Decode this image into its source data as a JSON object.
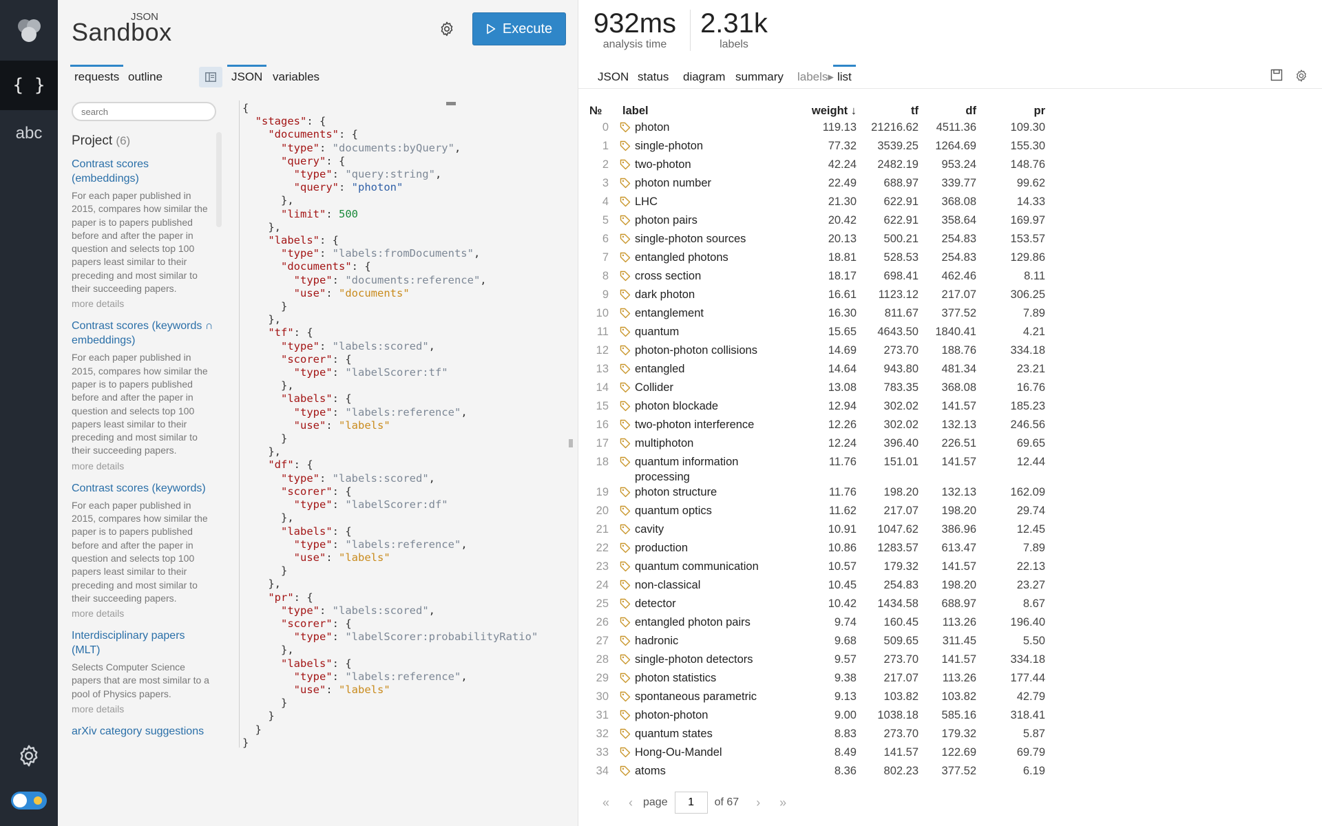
{
  "app": {
    "brand_small": "JSON",
    "brand_big": "Sandbox",
    "execute_label": "Execute"
  },
  "rail": {
    "json_label": "{ }",
    "abc_label": "abc"
  },
  "left_tabs": [
    "requests",
    "outline"
  ],
  "editor_tabs": [
    "JSON",
    "variables"
  ],
  "search": {
    "placeholder": "search"
  },
  "project": {
    "title": "Project",
    "count": "(6)"
  },
  "project_items": [
    {
      "title": "Contrast scores (embeddings)",
      "desc": "For each paper published in 2015, compares how similar the paper is to papers published before and after the paper in question and selects top 100 papers least similar to their preceding and most similar to their succeeding papers.",
      "more": "more details"
    },
    {
      "title": "Contrast scores (keywords ∩ embeddings)",
      "desc": "For each paper published in 2015, compares how similar the paper is to papers published before and after the paper in question and selects top 100 papers least similar to their preceding and most similar to their succeeding papers.",
      "more": "more details"
    },
    {
      "title": "Contrast scores (keywords)",
      "desc": "For each paper published in 2015, compares how similar the paper is to papers published before and after the paper in question and selects top 100 papers least similar to their preceding and most similar to their succeeding papers.",
      "more": "more details"
    },
    {
      "title": "Interdisciplinary papers (MLT)",
      "desc": "Selects Computer Science papers that are most similar to a pool of Physics papers.",
      "more": "more details"
    },
    {
      "title": "arXiv category suggestions",
      "desc": "",
      "more": ""
    }
  ],
  "stats": [
    {
      "value": "932ms",
      "label": "analysis time"
    },
    {
      "value": "2.31k",
      "label": "labels"
    }
  ],
  "result_tabs": [
    "JSON",
    "status",
    "diagram",
    "summary",
    "labels▸",
    "list"
  ],
  "columns": {
    "no": "№",
    "label": "label",
    "weight": "weight ↓",
    "tf": "tf",
    "df": "df",
    "pr": "pr"
  },
  "rows": [
    [
      "0",
      "photon",
      "119.13",
      "21216.62",
      "4511.36",
      "109.30"
    ],
    [
      "1",
      "single-photon",
      "77.32",
      "3539.25",
      "1264.69",
      "155.30"
    ],
    [
      "2",
      "two-photon",
      "42.24",
      "2482.19",
      "953.24",
      "148.76"
    ],
    [
      "3",
      "photon number",
      "22.49",
      "688.97",
      "339.77",
      "99.62"
    ],
    [
      "4",
      "LHC",
      "21.30",
      "622.91",
      "368.08",
      "14.33"
    ],
    [
      "5",
      "photon pairs",
      "20.42",
      "622.91",
      "358.64",
      "169.97"
    ],
    [
      "6",
      "single-photon sources",
      "20.13",
      "500.21",
      "254.83",
      "153.57"
    ],
    [
      "7",
      "entangled photons",
      "18.81",
      "528.53",
      "254.83",
      "129.86"
    ],
    [
      "8",
      "cross section",
      "18.17",
      "698.41",
      "462.46",
      "8.11"
    ],
    [
      "9",
      "dark photon",
      "16.61",
      "1123.12",
      "217.07",
      "306.25"
    ],
    [
      "10",
      "entanglement",
      "16.30",
      "811.67",
      "377.52",
      "7.89"
    ],
    [
      "11",
      "quantum",
      "15.65",
      "4643.50",
      "1840.41",
      "4.21"
    ],
    [
      "12",
      "photon-photon collisions",
      "14.69",
      "273.70",
      "188.76",
      "334.18"
    ],
    [
      "13",
      "entangled",
      "14.64",
      "943.80",
      "481.34",
      "23.21"
    ],
    [
      "14",
      "Collider",
      "13.08",
      "783.35",
      "368.08",
      "16.76"
    ],
    [
      "15",
      "photon blockade",
      "12.94",
      "302.02",
      "141.57",
      "185.23"
    ],
    [
      "16",
      "two-photon interference",
      "12.26",
      "302.02",
      "132.13",
      "246.56"
    ],
    [
      "17",
      "multiphoton",
      "12.24",
      "396.40",
      "226.51",
      "69.65"
    ],
    [
      "18",
      "quantum information processing",
      "11.76",
      "151.01",
      "141.57",
      "12.44"
    ],
    [
      "19",
      "photon structure",
      "11.76",
      "198.20",
      "132.13",
      "162.09"
    ],
    [
      "20",
      "quantum optics",
      "11.62",
      "217.07",
      "198.20",
      "29.74"
    ],
    [
      "21",
      "cavity",
      "10.91",
      "1047.62",
      "386.96",
      "12.45"
    ],
    [
      "22",
      "production",
      "10.86",
      "1283.57",
      "613.47",
      "7.89"
    ],
    [
      "23",
      "quantum communication",
      "10.57",
      "179.32",
      "141.57",
      "22.13"
    ],
    [
      "24",
      "non-classical",
      "10.45",
      "254.83",
      "198.20",
      "23.27"
    ],
    [
      "25",
      "detector",
      "10.42",
      "1434.58",
      "688.97",
      "8.67"
    ],
    [
      "26",
      "entangled photon pairs",
      "9.74",
      "160.45",
      "113.26",
      "196.40"
    ],
    [
      "27",
      "hadronic",
      "9.68",
      "509.65",
      "311.45",
      "5.50"
    ],
    [
      "28",
      "single-photon detectors",
      "9.57",
      "273.70",
      "141.57",
      "334.18"
    ],
    [
      "29",
      "photon statistics",
      "9.38",
      "217.07",
      "113.26",
      "177.44"
    ],
    [
      "30",
      "spontaneous parametric",
      "9.13",
      "103.82",
      "103.82",
      "42.79"
    ],
    [
      "31",
      "photon-photon",
      "9.00",
      "1038.18",
      "585.16",
      "318.41"
    ],
    [
      "32",
      "quantum states",
      "8.83",
      "273.70",
      "179.32",
      "5.87"
    ],
    [
      "33",
      "Hong-Ou-Mandel",
      "8.49",
      "141.57",
      "122.69",
      "69.79"
    ],
    [
      "34",
      "atoms",
      "8.36",
      "802.23",
      "377.52",
      "6.19"
    ]
  ],
  "pager": {
    "page_label": "page",
    "page_value": "1",
    "of_label": "of 67"
  },
  "code_lines": [
    [
      [
        "p",
        "{"
      ]
    ],
    [
      [
        "p",
        "  "
      ],
      [
        "k",
        "\"stages\""
      ],
      [
        "p",
        ": {"
      ]
    ],
    [
      [
        "p",
        "    "
      ],
      [
        "k",
        "\"documents\""
      ],
      [
        "p",
        ": {"
      ]
    ],
    [
      [
        "p",
        "      "
      ],
      [
        "k",
        "\"type\""
      ],
      [
        "p",
        ": "
      ],
      [
        "s",
        "\"documents:byQuery\""
      ],
      [
        "p",
        ","
      ]
    ],
    [
      [
        "p",
        "      "
      ],
      [
        "k",
        "\"query\""
      ],
      [
        "p",
        ": {"
      ]
    ],
    [
      [
        "p",
        "        "
      ],
      [
        "k",
        "\"type\""
      ],
      [
        "p",
        ": "
      ],
      [
        "s",
        "\"query:string\""
      ],
      [
        "p",
        ","
      ]
    ],
    [
      [
        "p",
        "        "
      ],
      [
        "k",
        "\"query\""
      ],
      [
        "p",
        ": "
      ],
      [
        "v",
        "\"photon\""
      ]
    ],
    [
      [
        "p",
        "      },"
      ]
    ],
    [
      [
        "p",
        "      "
      ],
      [
        "k",
        "\"limit\""
      ],
      [
        "p",
        ": "
      ],
      [
        "n",
        "500"
      ]
    ],
    [
      [
        "p",
        "    },"
      ]
    ],
    [
      [
        "p",
        "    "
      ],
      [
        "k",
        "\"labels\""
      ],
      [
        "p",
        ": {"
      ]
    ],
    [
      [
        "p",
        "      "
      ],
      [
        "k",
        "\"type\""
      ],
      [
        "p",
        ": "
      ],
      [
        "s",
        "\"labels:fromDocuments\""
      ],
      [
        "p",
        ","
      ]
    ],
    [
      [
        "p",
        "      "
      ],
      [
        "k",
        "\"documents\""
      ],
      [
        "p",
        ": {"
      ]
    ],
    [
      [
        "p",
        "        "
      ],
      [
        "k",
        "\"type\""
      ],
      [
        "p",
        ": "
      ],
      [
        "s",
        "\"documents:reference\""
      ],
      [
        "p",
        ","
      ]
    ],
    [
      [
        "p",
        "        "
      ],
      [
        "k",
        "\"use\""
      ],
      [
        "p",
        ": "
      ],
      [
        "d",
        "\"documents\""
      ]
    ],
    [
      [
        "p",
        "      }"
      ]
    ],
    [
      [
        "p",
        "    },"
      ]
    ],
    [
      [
        "p",
        "    "
      ],
      [
        "k",
        "\"tf\""
      ],
      [
        "p",
        ": {"
      ]
    ],
    [
      [
        "p",
        "      "
      ],
      [
        "k",
        "\"type\""
      ],
      [
        "p",
        ": "
      ],
      [
        "s",
        "\"labels:scored\""
      ],
      [
        "p",
        ","
      ]
    ],
    [
      [
        "p",
        "      "
      ],
      [
        "k",
        "\"scorer\""
      ],
      [
        "p",
        ": {"
      ]
    ],
    [
      [
        "p",
        "        "
      ],
      [
        "k",
        "\"type\""
      ],
      [
        "p",
        ": "
      ],
      [
        "s",
        "\"labelScorer:tf\""
      ]
    ],
    [
      [
        "p",
        "      },"
      ]
    ],
    [
      [
        "p",
        "      "
      ],
      [
        "k",
        "\"labels\""
      ],
      [
        "p",
        ": {"
      ]
    ],
    [
      [
        "p",
        "        "
      ],
      [
        "k",
        "\"type\""
      ],
      [
        "p",
        ": "
      ],
      [
        "s",
        "\"labels:reference\""
      ],
      [
        "p",
        ","
      ]
    ],
    [
      [
        "p",
        "        "
      ],
      [
        "k",
        "\"use\""
      ],
      [
        "p",
        ": "
      ],
      [
        "d",
        "\"labels\""
      ]
    ],
    [
      [
        "p",
        "      }"
      ]
    ],
    [
      [
        "p",
        "    },"
      ]
    ],
    [
      [
        "p",
        "    "
      ],
      [
        "k",
        "\"df\""
      ],
      [
        "p",
        ": {"
      ]
    ],
    [
      [
        "p",
        "      "
      ],
      [
        "k",
        "\"type\""
      ],
      [
        "p",
        ": "
      ],
      [
        "s",
        "\"labels:scored\""
      ],
      [
        "p",
        ","
      ]
    ],
    [
      [
        "p",
        "      "
      ],
      [
        "k",
        "\"scorer\""
      ],
      [
        "p",
        ": {"
      ]
    ],
    [
      [
        "p",
        "        "
      ],
      [
        "k",
        "\"type\""
      ],
      [
        "p",
        ": "
      ],
      [
        "s",
        "\"labelScorer:df\""
      ]
    ],
    [
      [
        "p",
        "      },"
      ]
    ],
    [
      [
        "p",
        "      "
      ],
      [
        "k",
        "\"labels\""
      ],
      [
        "p",
        ": {"
      ]
    ],
    [
      [
        "p",
        "        "
      ],
      [
        "k",
        "\"type\""
      ],
      [
        "p",
        ": "
      ],
      [
        "s",
        "\"labels:reference\""
      ],
      [
        "p",
        ","
      ]
    ],
    [
      [
        "p",
        "        "
      ],
      [
        "k",
        "\"use\""
      ],
      [
        "p",
        ": "
      ],
      [
        "d",
        "\"labels\""
      ]
    ],
    [
      [
        "p",
        "      }"
      ]
    ],
    [
      [
        "p",
        "    },"
      ]
    ],
    [
      [
        "p",
        "    "
      ],
      [
        "k",
        "\"pr\""
      ],
      [
        "p",
        ": {"
      ]
    ],
    [
      [
        "p",
        "      "
      ],
      [
        "k",
        "\"type\""
      ],
      [
        "p",
        ": "
      ],
      [
        "s",
        "\"labels:scored\""
      ],
      [
        "p",
        ","
      ]
    ],
    [
      [
        "p",
        "      "
      ],
      [
        "k",
        "\"scorer\""
      ],
      [
        "p",
        ": {"
      ]
    ],
    [
      [
        "p",
        "        "
      ],
      [
        "k",
        "\"type\""
      ],
      [
        "p",
        ": "
      ],
      [
        "s",
        "\"labelScorer:probabilityRatio\""
      ]
    ],
    [
      [
        "p",
        "      },"
      ]
    ],
    [
      [
        "p",
        "      "
      ],
      [
        "k",
        "\"labels\""
      ],
      [
        "p",
        ": {"
      ]
    ],
    [
      [
        "p",
        "        "
      ],
      [
        "k",
        "\"type\""
      ],
      [
        "p",
        ": "
      ],
      [
        "s",
        "\"labels:reference\""
      ],
      [
        "p",
        ","
      ]
    ],
    [
      [
        "p",
        "        "
      ],
      [
        "k",
        "\"use\""
      ],
      [
        "p",
        ": "
      ],
      [
        "d",
        "\"labels\""
      ]
    ],
    [
      [
        "p",
        "      }"
      ]
    ],
    [
      [
        "p",
        "    }"
      ]
    ],
    [
      [
        "p",
        "  }"
      ]
    ],
    [
      [
        "p",
        "}"
      ]
    ]
  ],
  "colors": {
    "accent": "#2f86c8",
    "rail": "#242a33",
    "tag_icon": "#c9962b"
  },
  "icons": {
    "logo": "cluster-logo-icon",
    "settings": "gear-icon",
    "play": "play-icon",
    "tag": "tag-icon",
    "save": "save-icon"
  }
}
